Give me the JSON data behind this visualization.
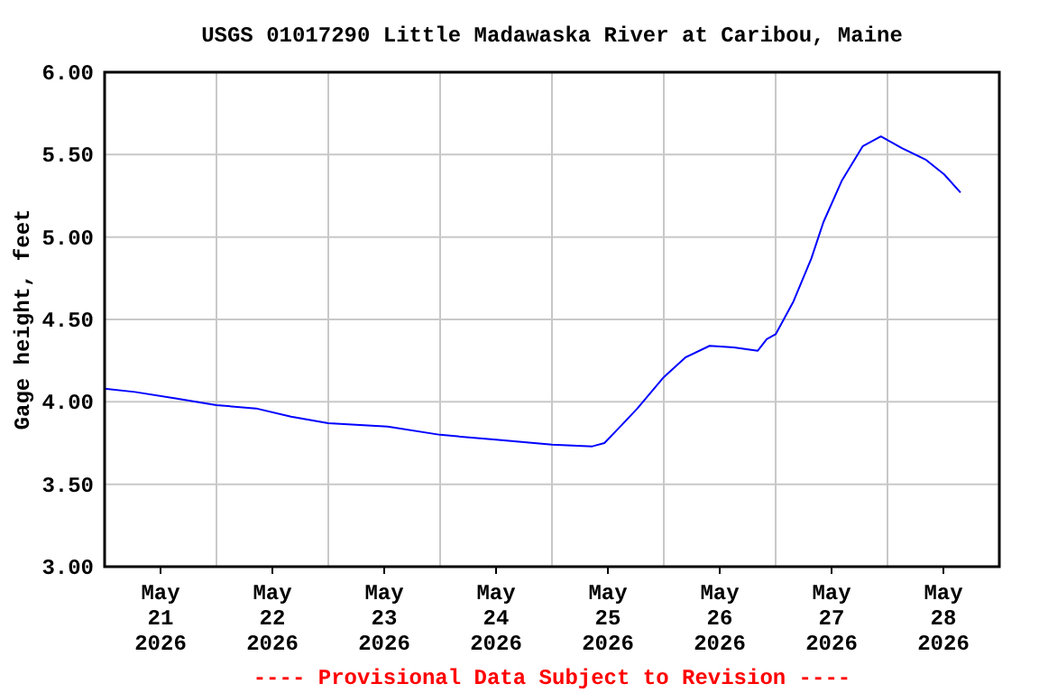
{
  "chart_data": {
    "type": "line",
    "title": "USGS 01017290 Little Madawaska River at Caribou, Maine",
    "ylabel": "Gage height, feet",
    "annotations": [
      "---- Provisional Data Subject to Revision ----"
    ],
    "x": [
      "2026-05-21T00:00",
      "2026-05-21T06:30",
      "2026-05-21T15:30",
      "2026-05-22T00:00",
      "2026-05-22T08:30",
      "2026-05-22T16:00",
      "2026-05-23T00:00",
      "2026-05-23T12:45",
      "2026-05-24T00:00",
      "2026-05-24T12:00",
      "2026-05-25T00:00",
      "2026-05-25T08:40",
      "2026-05-25T11:15",
      "2026-05-25T15:00",
      "2026-05-25T18:20",
      "2026-05-26T00:00",
      "2026-05-26T04:40",
      "2026-05-26T09:50",
      "2026-05-26T15:00",
      "2026-05-26T20:10",
      "2026-05-26T22:05",
      "2026-05-27T00:00",
      "2026-05-27T03:50",
      "2026-05-27T07:40",
      "2026-05-27T10:15",
      "2026-05-27T14:10",
      "2026-05-27T18:40",
      "2026-05-27T22:35",
      "2026-05-28T03:05",
      "2026-05-28T08:10",
      "2026-05-28T12:10",
      "2026-05-28T15:40"
    ],
    "series": [
      {
        "color": "#0000ff",
        "values": [
          4.08,
          4.06,
          4.02,
          3.98,
          3.96,
          3.91,
          3.87,
          3.85,
          3.8,
          3.77,
          3.74,
          3.73,
          3.75,
          3.86,
          3.96,
          4.15,
          4.27,
          4.34,
          4.33,
          4.31,
          4.38,
          4.41,
          4.61,
          4.87,
          5.09,
          5.34,
          5.55,
          5.61,
          5.54,
          5.47,
          5.38,
          5.27
        ]
      }
    ],
    "xlim": [
      "2026-05-21T00:00",
      "2026-05-29T00:00"
    ],
    "xticks": [
      {
        "value": "2026-05-21T12:00",
        "label": "May 21 2026"
      },
      {
        "value": "2026-05-22T00:00",
        "label": null
      },
      {
        "value": "2026-05-22T12:00",
        "label": "May 22 2026"
      },
      {
        "value": "2026-05-23T00:00",
        "label": null
      },
      {
        "value": "2026-05-23T12:00",
        "label": "May 23 2026"
      },
      {
        "value": "2026-05-24T00:00",
        "label": null
      },
      {
        "value": "2026-05-24T12:00",
        "label": "May 24 2026"
      },
      {
        "value": "2026-05-25T00:00",
        "label": null
      },
      {
        "value": "2026-05-25T12:00",
        "label": "May 25 2026"
      },
      {
        "value": "2026-05-26T00:00",
        "label": null
      },
      {
        "value": "2026-05-26T12:00",
        "label": "May 26 2026"
      },
      {
        "value": "2026-05-27T00:00",
        "label": null
      },
      {
        "value": "2026-05-27T12:00",
        "label": "May 27 2026"
      },
      {
        "value": "2026-05-28T00:00",
        "label": null
      },
      {
        "value": "2026-05-28T12:00",
        "label": "May 28 2026"
      }
    ],
    "ylim": [
      3,
      6
    ],
    "yticks": [
      {
        "value": 3,
        "label": "3.00"
      },
      {
        "value": 3.5,
        "label": "3.50"
      },
      {
        "value": 4,
        "label": "4.00"
      },
      {
        "value": 4.5,
        "label": "4.50"
      },
      {
        "value": 5,
        "label": "5.00"
      },
      {
        "value": 5.5,
        "label": "5.50"
      },
      {
        "value": 6,
        "label": "6.00"
      }
    ],
    "grid": true,
    "marker": "none",
    "line_style": "solid"
  }
}
